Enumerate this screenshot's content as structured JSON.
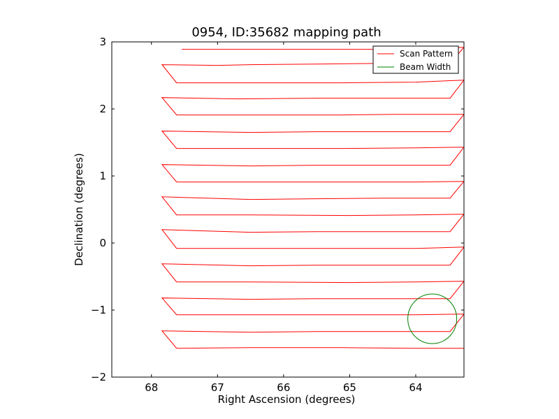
{
  "chart_data": {
    "type": "line",
    "title": "0954, ID:35682 mapping path",
    "xlabel": "Right Ascension (degrees)",
    "ylabel": "Declination (degrees)",
    "xlim": [
      68.6,
      63.27
    ],
    "ylim": [
      -2,
      3
    ],
    "x_inverted": true,
    "xticks": [
      68,
      67,
      66,
      65,
      64
    ],
    "yticks": [
      3,
      2,
      1,
      0,
      -1,
      -2
    ],
    "xtick_labels": [
      "68",
      "67",
      "66",
      "65",
      "64"
    ],
    "ytick_labels": [
      "3",
      "2",
      "1",
      "0",
      "−1",
      "−2"
    ],
    "grid": false,
    "legend": {
      "location": "top-right",
      "entries": [
        {
          "label": "Scan Pattern",
          "color": "#ff0000"
        },
        {
          "label": "Beam Width",
          "color": "#008000"
        }
      ]
    },
    "series": [
      {
        "name": "Scan Pattern",
        "color": "#ff0000",
        "points": [
          [
            67.54,
            2.89
          ],
          [
            66.5,
            2.89
          ],
          [
            65.12,
            2.89
          ],
          [
            64.0,
            2.89
          ],
          [
            63.27,
            2.92
          ],
          [
            63.48,
            2.68
          ],
          [
            64.5,
            2.68
          ],
          [
            65.5,
            2.67
          ],
          [
            66.5,
            2.66
          ],
          [
            67.0,
            2.65
          ],
          [
            67.84,
            2.66
          ],
          [
            67.62,
            2.39
          ],
          [
            66.5,
            2.39
          ],
          [
            65.12,
            2.39
          ],
          [
            64.0,
            2.4
          ],
          [
            63.27,
            2.43
          ],
          [
            63.48,
            2.16
          ],
          [
            64.5,
            2.16
          ],
          [
            65.5,
            2.16
          ],
          [
            66.7,
            2.15
          ],
          [
            67.84,
            2.17
          ],
          [
            67.62,
            1.91
          ],
          [
            66.5,
            1.91
          ],
          [
            65.12,
            1.91
          ],
          [
            64.3,
            1.92
          ],
          [
            63.27,
            1.92
          ],
          [
            63.48,
            1.66
          ],
          [
            64.5,
            1.66
          ],
          [
            65.5,
            1.66
          ],
          [
            66.5,
            1.65
          ],
          [
            67.84,
            1.67
          ],
          [
            67.62,
            1.41
          ],
          [
            66.5,
            1.41
          ],
          [
            65.12,
            1.41
          ],
          [
            64.0,
            1.42
          ],
          [
            63.27,
            1.43
          ],
          [
            63.48,
            1.16
          ],
          [
            64.5,
            1.16
          ],
          [
            65.5,
            1.16
          ],
          [
            66.5,
            1.15
          ],
          [
            67.84,
            1.17
          ],
          [
            67.62,
            0.91
          ],
          [
            66.5,
            0.91
          ],
          [
            65.12,
            0.91
          ],
          [
            64.0,
            0.91
          ],
          [
            63.27,
            0.92
          ],
          [
            63.48,
            0.67
          ],
          [
            64.5,
            0.67
          ],
          [
            65.5,
            0.66
          ],
          [
            66.5,
            0.65
          ],
          [
            67.84,
            0.69
          ],
          [
            67.62,
            0.42
          ],
          [
            66.5,
            0.42
          ],
          [
            65.0,
            0.41
          ],
          [
            64.0,
            0.42
          ],
          [
            63.27,
            0.43
          ],
          [
            63.48,
            0.17
          ],
          [
            64.5,
            0.17
          ],
          [
            65.5,
            0.17
          ],
          [
            66.5,
            0.16
          ],
          [
            67.84,
            0.2
          ],
          [
            67.62,
            -0.08
          ],
          [
            66.5,
            -0.08
          ],
          [
            65.12,
            -0.08
          ],
          [
            64.0,
            -0.08
          ],
          [
            63.27,
            -0.06
          ],
          [
            63.48,
            -0.33
          ],
          [
            64.5,
            -0.33
          ],
          [
            65.5,
            -0.33
          ],
          [
            66.5,
            -0.34
          ],
          [
            67.84,
            -0.31
          ],
          [
            67.62,
            -0.58
          ],
          [
            66.5,
            -0.58
          ],
          [
            64.96,
            -0.59
          ],
          [
            64.0,
            -0.58
          ],
          [
            63.27,
            -0.57
          ],
          [
            63.48,
            -0.83
          ],
          [
            64.5,
            -0.83
          ],
          [
            65.5,
            -0.83
          ],
          [
            66.5,
            -0.84
          ],
          [
            67.84,
            -0.82
          ],
          [
            67.62,
            -1.07
          ],
          [
            66.5,
            -1.07
          ],
          [
            65.12,
            -1.07
          ],
          [
            64.0,
            -1.07
          ],
          [
            63.27,
            -1.06
          ],
          [
            63.48,
            -1.32
          ],
          [
            64.5,
            -1.32
          ],
          [
            65.5,
            -1.32
          ],
          [
            66.5,
            -1.33
          ],
          [
            67.84,
            -1.31
          ],
          [
            67.62,
            -1.57
          ],
          [
            66.5,
            -1.56
          ],
          [
            65.12,
            -1.56
          ],
          [
            64.0,
            -1.57
          ],
          [
            63.27,
            -1.57
          ]
        ]
      },
      {
        "name": "Beam Width",
        "type": "circle",
        "color": "#008000",
        "center": [
          63.75,
          -1.13
        ],
        "radius": 0.37
      }
    ]
  }
}
